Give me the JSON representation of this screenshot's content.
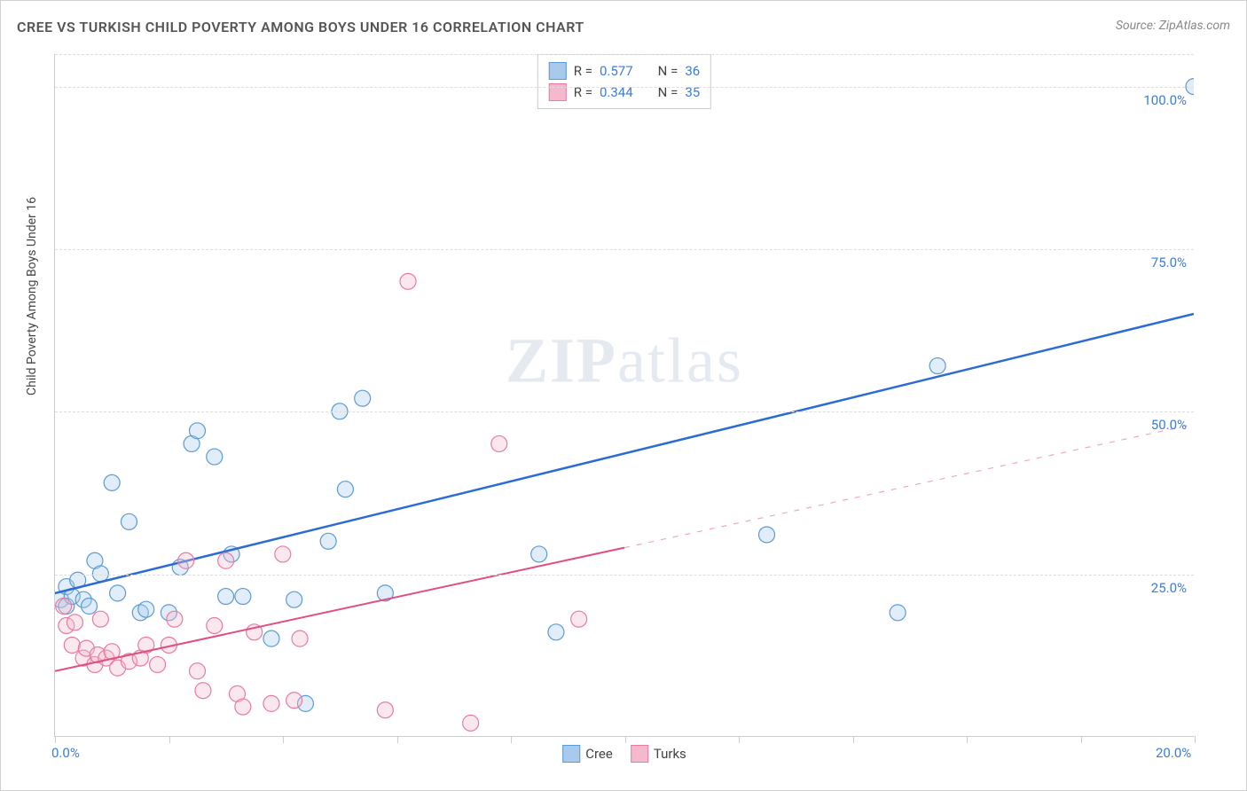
{
  "title": "CREE VS TURKISH CHILD POVERTY AMONG BOYS UNDER 16 CORRELATION CHART",
  "source_label": "Source:",
  "source_name": "ZipAtlas.com",
  "y_axis_label": "Child Poverty Among Boys Under 16",
  "watermark_a": "ZIP",
  "watermark_b": "atlas",
  "chart": {
    "type": "scatter",
    "xlim": [
      0,
      20
    ],
    "ylim": [
      0,
      105
    ],
    "x_tick_labels": {
      "0": "0.0%",
      "20": "20.0%"
    },
    "y_tick_labels": {
      "25": "25.0%",
      "50": "50.0%",
      "75": "75.0%",
      "100": "100.0%"
    },
    "x_ticks": [
      0,
      2,
      4,
      6,
      8,
      10,
      12,
      14,
      16,
      18,
      20
    ],
    "grid_y": [
      25,
      50,
      75,
      100,
      105
    ],
    "background_color": "#ffffff",
    "grid_color": "#dddddd",
    "axis_color": "#cccccc",
    "marker_radius": 9,
    "marker_stroke_width": 1.2,
    "marker_fill_opacity": 0.35,
    "series": [
      {
        "name": "Cree",
        "color_stroke": "#5b9bd5",
        "color_fill": "#a8cbed",
        "r_value": "0.577",
        "n_value": "36",
        "trend": {
          "x1": 0,
          "y1": 22,
          "x2": 20,
          "y2": 65,
          "solid_to_x": 20,
          "stroke": "#2b6cd4",
          "width": 2.5
        },
        "points": [
          [
            0.1,
            21
          ],
          [
            0.2,
            23
          ],
          [
            0.2,
            20
          ],
          [
            0.3,
            21.5
          ],
          [
            0.4,
            24
          ],
          [
            0.5,
            21
          ],
          [
            0.6,
            20
          ],
          [
            0.7,
            27
          ],
          [
            0.8,
            25
          ],
          [
            1.0,
            39
          ],
          [
            1.1,
            22
          ],
          [
            1.3,
            33
          ],
          [
            1.5,
            19
          ],
          [
            1.6,
            19.5
          ],
          [
            2.0,
            19
          ],
          [
            2.2,
            26
          ],
          [
            2.4,
            45
          ],
          [
            2.5,
            47
          ],
          [
            2.8,
            43
          ],
          [
            3.0,
            21.5
          ],
          [
            3.1,
            28
          ],
          [
            3.3,
            21.5
          ],
          [
            3.8,
            15
          ],
          [
            4.2,
            21
          ],
          [
            4.4,
            5
          ],
          [
            4.8,
            30
          ],
          [
            5.0,
            50
          ],
          [
            5.1,
            38
          ],
          [
            5.4,
            52
          ],
          [
            5.8,
            22
          ],
          [
            8.5,
            28
          ],
          [
            8.8,
            16
          ],
          [
            12.5,
            31
          ],
          [
            14.8,
            19
          ],
          [
            15.5,
            57
          ],
          [
            20.0,
            100
          ]
        ]
      },
      {
        "name": "Turks",
        "color_stroke": "#e97ba0",
        "color_fill": "#f4b9cd",
        "r_value": "0.344",
        "n_value": "35",
        "trend": {
          "x1": 0,
          "y1": 10,
          "x2": 20,
          "y2": 48,
          "solid_to_x": 10,
          "stroke": "#e04f7f",
          "width": 2
        },
        "points": [
          [
            0.15,
            20
          ],
          [
            0.2,
            17
          ],
          [
            0.3,
            14
          ],
          [
            0.35,
            17.5
          ],
          [
            0.5,
            12
          ],
          [
            0.55,
            13.5
          ],
          [
            0.7,
            11
          ],
          [
            0.75,
            12.5
          ],
          [
            0.8,
            18
          ],
          [
            0.9,
            12
          ],
          [
            1.0,
            13
          ],
          [
            1.1,
            10.5
          ],
          [
            1.3,
            11.5
          ],
          [
            1.5,
            12
          ],
          [
            1.6,
            14
          ],
          [
            1.8,
            11
          ],
          [
            2.0,
            14
          ],
          [
            2.1,
            18
          ],
          [
            2.3,
            27
          ],
          [
            2.5,
            10
          ],
          [
            2.6,
            7
          ],
          [
            2.8,
            17
          ],
          [
            3.0,
            27
          ],
          [
            3.2,
            6.5
          ],
          [
            3.3,
            4.5
          ],
          [
            3.5,
            16
          ],
          [
            3.8,
            5
          ],
          [
            4.0,
            28
          ],
          [
            4.2,
            5.5
          ],
          [
            4.3,
            15
          ],
          [
            5.8,
            4
          ],
          [
            6.2,
            70
          ],
          [
            7.3,
            2
          ],
          [
            7.8,
            45
          ],
          [
            9.2,
            18
          ]
        ]
      }
    ]
  },
  "legend_top": {
    "r_label": "R =",
    "n_label": "N ="
  },
  "legend_bottom": {
    "items": [
      "Cree",
      "Turks"
    ]
  }
}
